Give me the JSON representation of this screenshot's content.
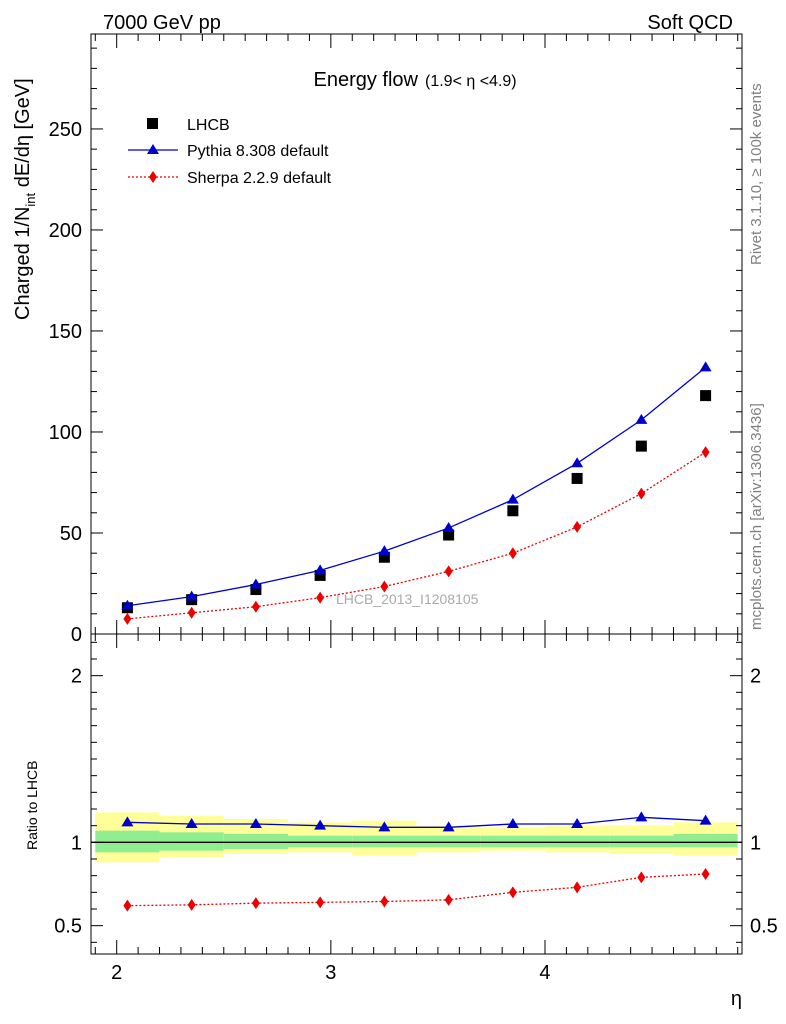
{
  "header": {
    "left": "7000 GeV pp",
    "right": "Soft QCD"
  },
  "side_text": {
    "upper": "Rivet 3.1.10, ≥ 100k events",
    "lower": "mcplots.cern.ch [arXiv:1306.3436]"
  },
  "chart_data": [
    {
      "type": "scatter",
      "title": "Energy flow",
      "title_range": "(1.9< η <4.9)",
      "ylabel": "Charged 1/N",
      "ylabel_sub": "int",
      "ylabel_tail": " dE/dη [GeV]",
      "watermark": "LHCB_2013_I1208105",
      "xlim": [
        1.88,
        4.92
      ],
      "ylim": [
        0,
        297
      ],
      "y_ticks": [
        "0",
        "50",
        "100",
        "150",
        "200",
        "250"
      ],
      "x": [
        2.05,
        2.35,
        2.65,
        2.95,
        3.25,
        3.55,
        3.85,
        4.15,
        4.45,
        4.75
      ],
      "legend_position": "top-left",
      "series": [
        {
          "name": "LHCB",
          "marker": "square",
          "color": "#000000",
          "values": [
            13,
            17,
            22,
            29,
            38,
            49,
            61,
            77,
            93,
            118
          ]
        },
        {
          "name": "Pythia 8.308 default",
          "marker": "triangle",
          "line": "solid",
          "color": "#0000cc",
          "values": [
            14,
            18.5,
            24.5,
            31.5,
            41,
            52.5,
            66.5,
            84.5,
            106,
            132
          ]
        },
        {
          "name": "Sherpa 2.2.9 default",
          "marker": "diamond",
          "line": "dotted",
          "color": "#ee0000",
          "values": [
            7.5,
            10.5,
            13.5,
            18,
            23.5,
            31,
            40,
            53,
            69.5,
            90
          ]
        }
      ]
    },
    {
      "type": "line",
      "ylabel": "Ratio to LHCB",
      "xlabel": "η",
      "xlim": [
        1.88,
        4.92
      ],
      "ylim": [
        0.33,
        2.25
      ],
      "x_ticks": [
        "2",
        "3",
        "4"
      ],
      "y_ticks": [
        "0.5",
        "1",
        "2"
      ],
      "x": [
        2.05,
        2.35,
        2.65,
        2.95,
        3.25,
        3.55,
        3.85,
        4.15,
        4.45,
        4.75
      ],
      "bands": {
        "bin_edges": [
          1.9,
          2.2,
          2.5,
          2.8,
          3.1,
          3.4,
          3.7,
          4.0,
          4.3,
          4.6,
          4.9
        ],
        "stat_low": [
          0.94,
          0.95,
          0.96,
          0.97,
          0.97,
          0.97,
          0.97,
          0.97,
          0.97,
          0.97
        ],
        "stat_high": [
          1.07,
          1.06,
          1.05,
          1.04,
          1.04,
          1.04,
          1.04,
          1.04,
          1.04,
          1.05
        ],
        "total_low": [
          0.88,
          0.91,
          0.93,
          0.94,
          0.92,
          0.94,
          0.95,
          0.94,
          0.93,
          0.92
        ],
        "total_high": [
          1.18,
          1.16,
          1.14,
          1.12,
          1.13,
          1.1,
          1.09,
          1.1,
          1.1,
          1.12
        ],
        "colors": {
          "stat": "#90ee90",
          "total": "#ffff99"
        }
      },
      "series": [
        {
          "name": "Pythia 8.308 default",
          "marker": "triangle",
          "line": "solid",
          "color": "#0000cc",
          "values": [
            1.12,
            1.11,
            1.11,
            1.1,
            1.09,
            1.09,
            1.11,
            1.11,
            1.15,
            1.13
          ]
        },
        {
          "name": "Sherpa 2.2.9 default",
          "marker": "diamond",
          "line": "dotted",
          "color": "#ee0000",
          "values": [
            0.62,
            0.625,
            0.635,
            0.64,
            0.645,
            0.655,
            0.7,
            0.73,
            0.79,
            0.81
          ]
        }
      ]
    }
  ]
}
